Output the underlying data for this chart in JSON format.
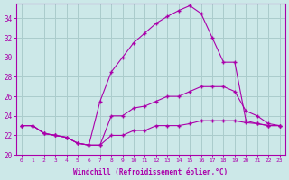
{
  "xlabel": "Windchill (Refroidissement éolien,°C)",
  "bg_color": "#cce8e8",
  "line_color": "#aa00aa",
  "grid_color": "#aacccc",
  "hours": [
    0,
    1,
    2,
    3,
    4,
    5,
    6,
    7,
    8,
    9,
    10,
    11,
    12,
    13,
    14,
    15,
    16,
    17,
    18,
    19,
    20,
    21,
    22,
    23
  ],
  "line1": [
    23.0,
    23.0,
    22.2,
    22.0,
    21.8,
    21.2,
    21.0,
    21.0,
    22.0,
    22.0,
    22.5,
    22.5,
    23.0,
    23.0,
    23.0,
    23.2,
    23.5,
    23.5,
    23.5,
    23.5,
    23.3,
    23.2,
    23.0,
    23.0
  ],
  "line2": [
    23.0,
    23.0,
    22.2,
    22.0,
    21.8,
    21.2,
    21.0,
    25.5,
    28.5,
    30.0,
    31.5,
    32.5,
    33.5,
    34.2,
    34.8,
    35.3,
    34.5,
    32.0,
    29.5,
    29.5,
    23.5,
    23.2,
    23.0,
    23.0
  ],
  "line3": [
    23.0,
    23.0,
    22.2,
    22.0,
    21.8,
    21.2,
    21.0,
    21.0,
    24.0,
    24.0,
    24.8,
    25.0,
    25.5,
    26.0,
    26.0,
    26.5,
    27.0,
    27.0,
    27.0,
    26.5,
    24.5,
    24.0,
    23.2,
    23.0
  ],
  "ylim": [
    20,
    35
  ],
  "yticks": [
    20,
    22,
    24,
    26,
    28,
    30,
    32,
    34
  ],
  "xlim": [
    -0.5,
    23.5
  ]
}
